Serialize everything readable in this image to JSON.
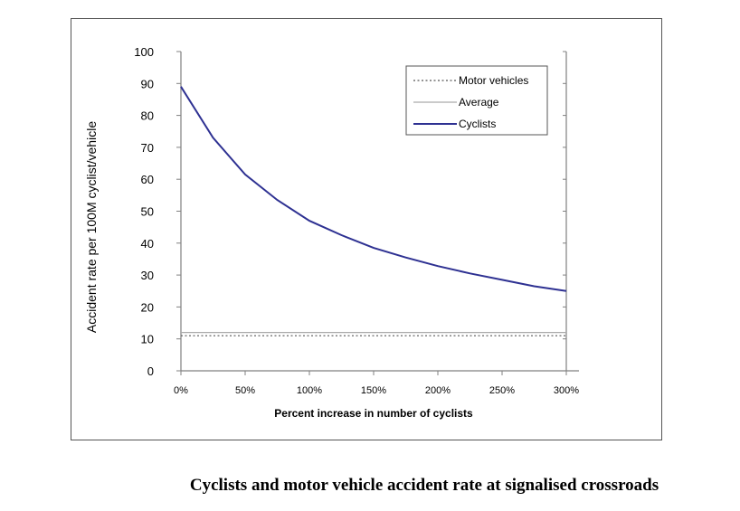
{
  "chart_data": {
    "type": "line",
    "title": "",
    "caption": "Cyclists and motor vehicle accident rate at signalised crossroads",
    "xlabel": "Percent increase in number of cyclists",
    "ylabel": "Accident rate per 100M cyclist/vehicle",
    "x": [
      0,
      25,
      50,
      75,
      100,
      125,
      150,
      175,
      200,
      225,
      250,
      275,
      300
    ],
    "x_tick_labels": [
      "0%",
      "50%",
      "100%",
      "150%",
      "200%",
      "250%",
      "300%"
    ],
    "x_ticks": [
      0,
      50,
      100,
      150,
      200,
      250,
      300
    ],
    "xlim": [
      0,
      300
    ],
    "ylim": [
      0,
      100
    ],
    "y_ticks": [
      0,
      10,
      20,
      30,
      40,
      50,
      60,
      70,
      80,
      90,
      100
    ],
    "grid": false,
    "legend_position": "top-right",
    "series": [
      {
        "name": "Motor vehicles",
        "style": "dotted",
        "color": "#555555",
        "values": [
          11,
          11,
          11,
          11,
          11,
          11,
          11,
          11,
          11,
          11,
          11,
          11,
          11
        ]
      },
      {
        "name": "Average",
        "style": "solid",
        "color": "#aaaaaa",
        "values": [
          12,
          12,
          12,
          12,
          12,
          12,
          12,
          12,
          12,
          12,
          12,
          12,
          12
        ]
      },
      {
        "name": "Cyclists",
        "style": "solid",
        "color": "#2e3192",
        "values": [
          89,
          73,
          61.5,
          53.5,
          47,
          42.5,
          38.5,
          35.5,
          32.8,
          30.5,
          28.5,
          26.5,
          25
        ]
      }
    ]
  }
}
